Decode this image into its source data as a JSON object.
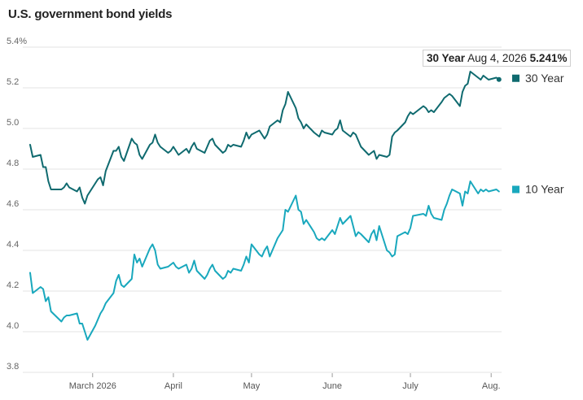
{
  "title": "U.S. government bond yields",
  "tooltip": {
    "series": "30 Year",
    "date": "Aug 4, 2026",
    "value": "5.241%"
  },
  "colors": {
    "30Y": "#0f6a6f",
    "10Y": "#19a8bd",
    "grid": "#e3e3e3"
  },
  "chart_data": {
    "type": "line",
    "title": "U.S. government bond yields",
    "xlabel": "",
    "ylabel": "",
    "ylim": [
      3.8,
      5.4
    ],
    "yticks": [
      3.8,
      4.0,
      4.2,
      4.4,
      4.6,
      4.8,
      5.0,
      5.2,
      5.4
    ],
    "ytick_labels": [
      "3.8",
      "4.0",
      "4.2",
      "4.4",
      "4.6",
      "4.8",
      "5.0",
      "5.2",
      "5.4%"
    ],
    "xlim": [
      "2026-02-05",
      "2026-08-05"
    ],
    "xticks": [
      {
        "date": "2026-03-01",
        "label": "March 2026"
      },
      {
        "date": "2026-04-01",
        "label": "April"
      },
      {
        "date": "2026-05-01",
        "label": "May"
      },
      {
        "date": "2026-06-01",
        "label": "June"
      },
      {
        "date": "2026-07-01",
        "label": "July"
      },
      {
        "date": "2026-08-01",
        "label": "Aug."
      }
    ],
    "grid": true,
    "legend": "right, at line ends",
    "series": [
      {
        "name": "30 Year",
        "color": "#0f6a6f",
        "points": [
          [
            "2026-02-05",
            4.92
          ],
          [
            "2026-02-06",
            4.86
          ],
          [
            "2026-02-09",
            4.87
          ],
          [
            "2026-02-10",
            4.81
          ],
          [
            "2026-02-11",
            4.81
          ],
          [
            "2026-02-12",
            4.74
          ],
          [
            "2026-02-13",
            4.7
          ],
          [
            "2026-02-17",
            4.7
          ],
          [
            "2026-02-18",
            4.71
          ],
          [
            "2026-02-19",
            4.73
          ],
          [
            "2026-02-20",
            4.71
          ],
          [
            "2026-02-23",
            4.69
          ],
          [
            "2026-02-24",
            4.71
          ],
          [
            "2026-02-25",
            4.66
          ],
          [
            "2026-02-26",
            4.63
          ],
          [
            "2026-02-27",
            4.67
          ],
          [
            "2026-03-02",
            4.73
          ],
          [
            "2026-03-03",
            4.75
          ],
          [
            "2026-03-04",
            4.76
          ],
          [
            "2026-03-05",
            4.72
          ],
          [
            "2026-03-06",
            4.79
          ],
          [
            "2026-03-09",
            4.89
          ],
          [
            "2026-03-10",
            4.89
          ],
          [
            "2026-03-11",
            4.91
          ],
          [
            "2026-03-12",
            4.86
          ],
          [
            "2026-03-13",
            4.84
          ],
          [
            "2026-03-16",
            4.95
          ],
          [
            "2026-03-17",
            4.93
          ],
          [
            "2026-03-18",
            4.92
          ],
          [
            "2026-03-19",
            4.87
          ],
          [
            "2026-03-20",
            4.85
          ],
          [
            "2026-03-23",
            4.92
          ],
          [
            "2026-03-24",
            4.93
          ],
          [
            "2026-03-25",
            4.97
          ],
          [
            "2026-03-26",
            4.93
          ],
          [
            "2026-03-27",
            4.91
          ],
          [
            "2026-03-30",
            4.88
          ],
          [
            "2026-03-31",
            4.89
          ],
          [
            "2026-04-01",
            4.91
          ],
          [
            "2026-04-02",
            4.89
          ],
          [
            "2026-04-03",
            4.87
          ],
          [
            "2026-04-06",
            4.9
          ],
          [
            "2026-04-07",
            4.88
          ],
          [
            "2026-04-08",
            4.91
          ],
          [
            "2026-04-09",
            4.93
          ],
          [
            "2026-04-10",
            4.9
          ],
          [
            "2026-04-13",
            4.88
          ],
          [
            "2026-04-14",
            4.91
          ],
          [
            "2026-04-15",
            4.94
          ],
          [
            "2026-04-16",
            4.95
          ],
          [
            "2026-04-17",
            4.92
          ],
          [
            "2026-04-20",
            4.88
          ],
          [
            "2026-04-21",
            4.89
          ],
          [
            "2026-04-22",
            4.92
          ],
          [
            "2026-04-23",
            4.91
          ],
          [
            "2026-04-24",
            4.92
          ],
          [
            "2026-04-27",
            4.91
          ],
          [
            "2026-04-28",
            4.94
          ],
          [
            "2026-04-29",
            4.98
          ],
          [
            "2026-04-30",
            4.95
          ],
          [
            "2026-05-01",
            4.97
          ],
          [
            "2026-05-04",
            4.99
          ],
          [
            "2026-05-05",
            4.97
          ],
          [
            "2026-05-06",
            4.95
          ],
          [
            "2026-05-07",
            4.97
          ],
          [
            "2026-05-08",
            5.01
          ],
          [
            "2026-05-11",
            5.04
          ],
          [
            "2026-05-12",
            5.03
          ],
          [
            "2026-05-13",
            5.09
          ],
          [
            "2026-05-14",
            5.12
          ],
          [
            "2026-05-15",
            5.18
          ],
          [
            "2026-05-18",
            5.1
          ],
          [
            "2026-05-19",
            5.05
          ],
          [
            "2026-05-20",
            5.03
          ],
          [
            "2026-05-21",
            5.0
          ],
          [
            "2026-05-22",
            5.02
          ],
          [
            "2026-05-25",
            4.98
          ],
          [
            "2026-05-26",
            4.97
          ],
          [
            "2026-05-27",
            4.96
          ],
          [
            "2026-05-28",
            4.99
          ],
          [
            "2026-05-29",
            4.98
          ],
          [
            "2026-06-01",
            4.97
          ],
          [
            "2026-06-02",
            4.99
          ],
          [
            "2026-06-03",
            5.0
          ],
          [
            "2026-06-04",
            5.04
          ],
          [
            "2026-06-05",
            4.99
          ],
          [
            "2026-06-08",
            4.96
          ],
          [
            "2026-06-09",
            4.98
          ],
          [
            "2026-06-10",
            4.97
          ],
          [
            "2026-06-11",
            4.94
          ],
          [
            "2026-06-12",
            4.91
          ],
          [
            "2026-06-15",
            4.87
          ],
          [
            "2026-06-16",
            4.88
          ],
          [
            "2026-06-17",
            4.89
          ],
          [
            "2026-06-18",
            4.85
          ],
          [
            "2026-06-19",
            4.87
          ],
          [
            "2026-06-22",
            4.86
          ],
          [
            "2026-06-23",
            4.87
          ],
          [
            "2026-06-24",
            4.96
          ],
          [
            "2026-06-25",
            4.98
          ],
          [
            "2026-06-26",
            4.99
          ],
          [
            "2026-06-29",
            5.03
          ],
          [
            "2026-06-30",
            5.06
          ],
          [
            "2026-07-01",
            5.08
          ],
          [
            "2026-07-02",
            5.07
          ],
          [
            "2026-07-06",
            5.11
          ],
          [
            "2026-07-07",
            5.1
          ],
          [
            "2026-07-08",
            5.08
          ],
          [
            "2026-07-09",
            5.09
          ],
          [
            "2026-07-10",
            5.08
          ],
          [
            "2026-07-13",
            5.13
          ],
          [
            "2026-07-14",
            5.15
          ],
          [
            "2026-07-15",
            5.16
          ],
          [
            "2026-07-16",
            5.17
          ],
          [
            "2026-07-17",
            5.16
          ],
          [
            "2026-07-20",
            5.11
          ],
          [
            "2026-07-21",
            5.18
          ],
          [
            "2026-07-22",
            5.21
          ],
          [
            "2026-07-23",
            5.22
          ],
          [
            "2026-07-24",
            5.28
          ],
          [
            "2026-07-27",
            5.25
          ],
          [
            "2026-07-28",
            5.24
          ],
          [
            "2026-07-29",
            5.26
          ],
          [
            "2026-07-30",
            5.25
          ],
          [
            "2026-07-31",
            5.24
          ],
          [
            "2026-08-03",
            5.25
          ],
          [
            "2026-08-04",
            5.241
          ]
        ]
      },
      {
        "name": "10 Year",
        "color": "#19a8bd",
        "points": [
          [
            "2026-02-05",
            4.29
          ],
          [
            "2026-02-06",
            4.19
          ],
          [
            "2026-02-09",
            4.22
          ],
          [
            "2026-02-10",
            4.21
          ],
          [
            "2026-02-11",
            4.15
          ],
          [
            "2026-02-12",
            4.17
          ],
          [
            "2026-02-13",
            4.1
          ],
          [
            "2026-02-17",
            4.05
          ],
          [
            "2026-02-18",
            4.07
          ],
          [
            "2026-02-19",
            4.08
          ],
          [
            "2026-02-20",
            4.08
          ],
          [
            "2026-02-23",
            4.09
          ],
          [
            "2026-02-24",
            4.04
          ],
          [
            "2026-02-25",
            4.04
          ],
          [
            "2026-02-26",
            4.0
          ],
          [
            "2026-02-27",
            3.96
          ],
          [
            "2026-03-02",
            4.03
          ],
          [
            "2026-03-03",
            4.06
          ],
          [
            "2026-03-04",
            4.09
          ],
          [
            "2026-03-05",
            4.11
          ],
          [
            "2026-03-06",
            4.14
          ],
          [
            "2026-03-09",
            4.19
          ],
          [
            "2026-03-10",
            4.25
          ],
          [
            "2026-03-11",
            4.28
          ],
          [
            "2026-03-12",
            4.23
          ],
          [
            "2026-03-13",
            4.22
          ],
          [
            "2026-03-16",
            4.26
          ],
          [
            "2026-03-17",
            4.38
          ],
          [
            "2026-03-18",
            4.34
          ],
          [
            "2026-03-19",
            4.36
          ],
          [
            "2026-03-20",
            4.32
          ],
          [
            "2026-03-23",
            4.41
          ],
          [
            "2026-03-24",
            4.43
          ],
          [
            "2026-03-25",
            4.4
          ],
          [
            "2026-03-26",
            4.33
          ],
          [
            "2026-03-27",
            4.31
          ],
          [
            "2026-03-30",
            4.32
          ],
          [
            "2026-03-31",
            4.33
          ],
          [
            "2026-04-01",
            4.34
          ],
          [
            "2026-04-02",
            4.32
          ],
          [
            "2026-04-03",
            4.31
          ],
          [
            "2026-04-06",
            4.33
          ],
          [
            "2026-04-07",
            4.29
          ],
          [
            "2026-04-08",
            4.31
          ],
          [
            "2026-04-09",
            4.35
          ],
          [
            "2026-04-10",
            4.3
          ],
          [
            "2026-04-13",
            4.26
          ],
          [
            "2026-04-14",
            4.28
          ],
          [
            "2026-04-15",
            4.31
          ],
          [
            "2026-04-16",
            4.33
          ],
          [
            "2026-04-17",
            4.3
          ],
          [
            "2026-04-20",
            4.26
          ],
          [
            "2026-04-21",
            4.27
          ],
          [
            "2026-04-22",
            4.3
          ],
          [
            "2026-04-23",
            4.29
          ],
          [
            "2026-04-24",
            4.31
          ],
          [
            "2026-04-27",
            4.3
          ],
          [
            "2026-04-28",
            4.33
          ],
          [
            "2026-04-29",
            4.37
          ],
          [
            "2026-04-30",
            4.34
          ],
          [
            "2026-05-01",
            4.43
          ],
          [
            "2026-05-04",
            4.38
          ],
          [
            "2026-05-05",
            4.37
          ],
          [
            "2026-05-06",
            4.4
          ],
          [
            "2026-05-07",
            4.42
          ],
          [
            "2026-05-08",
            4.37
          ],
          [
            "2026-05-11",
            4.46
          ],
          [
            "2026-05-12",
            4.48
          ],
          [
            "2026-05-13",
            4.5
          ],
          [
            "2026-05-14",
            4.6
          ],
          [
            "2026-05-15",
            4.59
          ],
          [
            "2026-05-18",
            4.67
          ],
          [
            "2026-05-19",
            4.6
          ],
          [
            "2026-05-20",
            4.59
          ],
          [
            "2026-05-21",
            4.53
          ],
          [
            "2026-05-22",
            4.55
          ],
          [
            "2026-05-25",
            4.49
          ],
          [
            "2026-05-26",
            4.46
          ],
          [
            "2026-05-27",
            4.45
          ],
          [
            "2026-05-28",
            4.46
          ],
          [
            "2026-05-29",
            4.45
          ],
          [
            "2026-06-01",
            4.5
          ],
          [
            "2026-06-02",
            4.48
          ],
          [
            "2026-06-03",
            4.52
          ],
          [
            "2026-06-04",
            4.56
          ],
          [
            "2026-06-05",
            4.53
          ],
          [
            "2026-06-08",
            4.57
          ],
          [
            "2026-06-09",
            4.52
          ],
          [
            "2026-06-10",
            4.47
          ],
          [
            "2026-06-11",
            4.49
          ],
          [
            "2026-06-12",
            4.48
          ],
          [
            "2026-06-15",
            4.44
          ],
          [
            "2026-06-16",
            4.48
          ],
          [
            "2026-06-17",
            4.5
          ],
          [
            "2026-06-18",
            4.45
          ],
          [
            "2026-06-19",
            4.52
          ],
          [
            "2026-06-22",
            4.4
          ],
          [
            "2026-06-23",
            4.39
          ],
          [
            "2026-06-24",
            4.37
          ],
          [
            "2026-06-25",
            4.38
          ],
          [
            "2026-06-26",
            4.47
          ],
          [
            "2026-06-29",
            4.49
          ],
          [
            "2026-06-30",
            4.48
          ],
          [
            "2026-07-01",
            4.51
          ],
          [
            "2026-07-02",
            4.57
          ],
          [
            "2026-07-06",
            4.58
          ],
          [
            "2026-07-07",
            4.57
          ],
          [
            "2026-07-08",
            4.62
          ],
          [
            "2026-07-09",
            4.58
          ],
          [
            "2026-07-10",
            4.56
          ],
          [
            "2026-07-13",
            4.55
          ],
          [
            "2026-07-14",
            4.6
          ],
          [
            "2026-07-15",
            4.63
          ],
          [
            "2026-07-16",
            4.67
          ],
          [
            "2026-07-17",
            4.7
          ],
          [
            "2026-07-20",
            4.68
          ],
          [
            "2026-07-21",
            4.62
          ],
          [
            "2026-07-22",
            4.69
          ],
          [
            "2026-07-23",
            4.68
          ],
          [
            "2026-07-24",
            4.74
          ],
          [
            "2026-07-27",
            4.68
          ],
          [
            "2026-07-28",
            4.7
          ],
          [
            "2026-07-29",
            4.69
          ],
          [
            "2026-07-30",
            4.7
          ],
          [
            "2026-07-31",
            4.69
          ],
          [
            "2026-08-03",
            4.7
          ],
          [
            "2026-08-04",
            4.69
          ]
        ]
      }
    ]
  }
}
